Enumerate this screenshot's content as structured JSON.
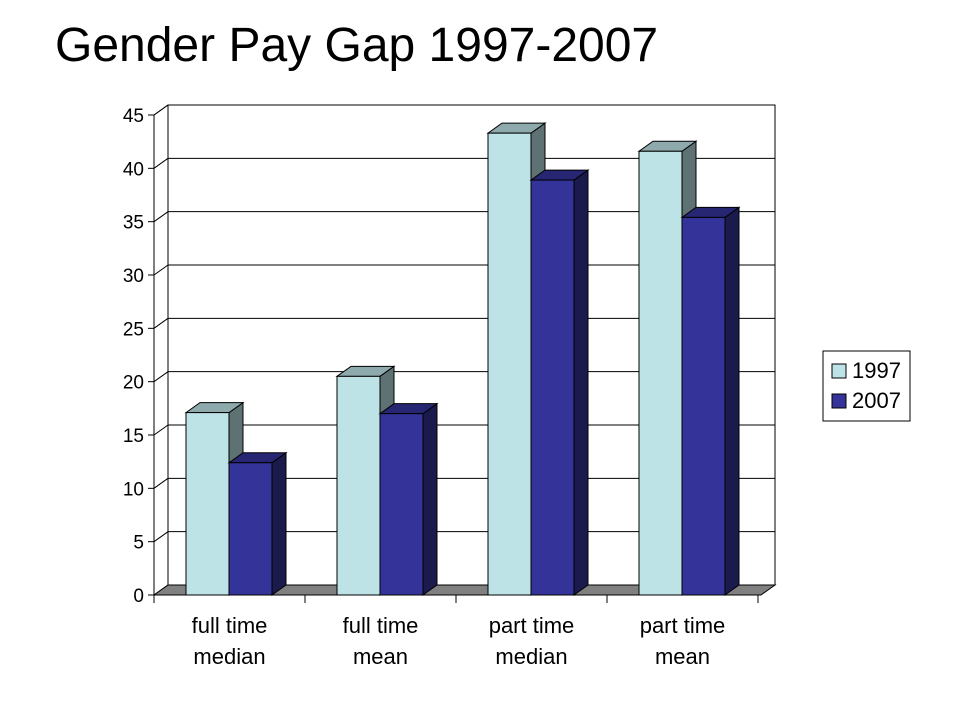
{
  "slide": {
    "title": "Gender Pay Gap 1997-2007"
  },
  "colors": {
    "series_1997_front": "#bde3e6",
    "series_1997_top": "#8eaaac",
    "series_1997_side": "#5e7173",
    "series_2007_front": "#333399",
    "series_2007_top": "#262673",
    "series_2007_side": "#1a1a4d",
    "floor": "#808080",
    "gridline": "#000000"
  },
  "chart_data": {
    "type": "bar",
    "title": "",
    "xlabel": "",
    "ylabel": "",
    "ylim": [
      0,
      45
    ],
    "yticks": [
      "0",
      "5",
      "10",
      "15",
      "20",
      "25",
      "30",
      "35",
      "40",
      "45"
    ],
    "categories": [
      [
        "full time",
        "median"
      ],
      [
        "full time",
        "mean"
      ],
      [
        "part time",
        "median"
      ],
      [
        "part time",
        "mean"
      ]
    ],
    "series": [
      {
        "name": "1997",
        "values": [
          17.1,
          20.5,
          43.3,
          41.6
        ]
      },
      {
        "name": "2007",
        "values": [
          12.4,
          17.0,
          38.9,
          35.4
        ]
      }
    ],
    "grid": true,
    "three_d": true,
    "legend_position": "right"
  }
}
